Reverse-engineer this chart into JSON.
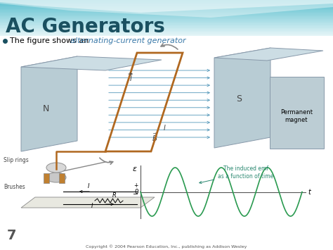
{
  "title": "AC Generators",
  "bullet_plain": "The figure shows an ",
  "bullet_italic": "alternating-current generator",
  "page_num": "7",
  "copyright": "Copyright © 2004 Pearson Education, Inc., publishing as Addison Wesley",
  "bg_color": "#f0f0ee",
  "header_color1": "#5bbfcf",
  "header_color2": "#aadde8",
  "title_color": "#1a5060",
  "bullet_dot_color": "#1a5060",
  "italic_color": "#3878a8",
  "sine_color": "#2a9a50",
  "magnet_face_color": "#b8ccd4",
  "magnet_top_color": "#ccdde4",
  "magnet_edge_color": "#8899aa",
  "coil_color": "#b06820",
  "field_arrow_color": "#5599bb",
  "rotation_arrow_color": "#888888",
  "annotation_color": "#2a8870",
  "label_color": "#444444",
  "pm_box_color": "#bccdd4"
}
